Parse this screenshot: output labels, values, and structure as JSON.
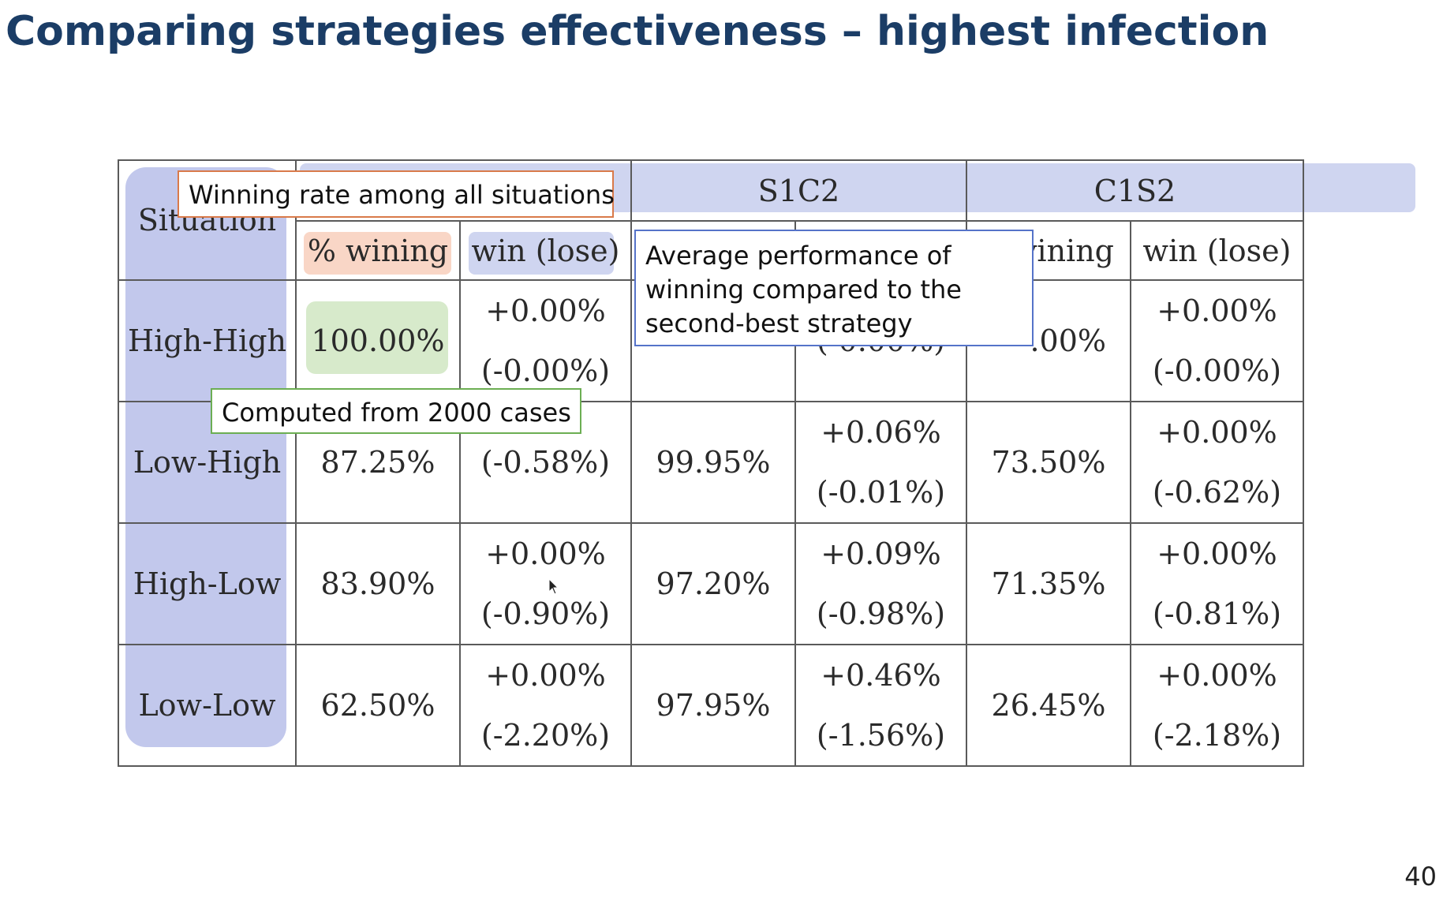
{
  "slide": {
    "title": "Comparing strategies effectiveness – highest infection",
    "page_number": "40"
  },
  "table": {
    "header": {
      "situation": "Situation",
      "s1c2": "S1C2",
      "c1s2": "C1S2"
    },
    "subheader": {
      "pct_winning": "% wining",
      "win_lose": "win (lose)",
      "c1s2_pct_partial": "vining",
      "c1s2_win_lose": "win (lose)"
    },
    "rows": [
      {
        "situation": "High-High",
        "w_rate": "100.00%",
        "w_gain": "+0.00%",
        "w_loss": "(-0.00%)",
        "s1_rate": "",
        "s1_gain": "",
        "s1_loss": "(-0.00%)",
        "c1_rate": ".00%",
        "c1_gain": "+0.00%",
        "c1_loss": "(-0.00%)"
      },
      {
        "situation": "Low-High",
        "w_rate": "87.25%",
        "w_gain": "",
        "w_loss": "(-0.58%)",
        "s1_rate": "99.95%",
        "s1_gain": "+0.06%",
        "s1_loss": "(-0.01%)",
        "c1_rate": "73.50%",
        "c1_gain": "+0.00%",
        "c1_loss": "(-0.62%)"
      },
      {
        "situation": "High-Low",
        "w_rate": "83.90%",
        "w_gain": "+0.00%",
        "w_loss": "(-0.90%)",
        "s1_rate": "97.20%",
        "s1_gain": "+0.09%",
        "s1_loss": "(-0.98%)",
        "c1_rate": "71.35%",
        "c1_gain": "+0.00%",
        "c1_loss": "(-0.81%)"
      },
      {
        "situation": "Low-Low",
        "w_rate": "62.50%",
        "w_gain": "+0.00%",
        "w_loss": "(-2.20%)",
        "s1_rate": "97.95%",
        "s1_gain": "+0.46%",
        "s1_loss": "(-1.56%)",
        "c1_rate": "26.45%",
        "c1_gain": "+0.00%",
        "c1_loss": "(-2.18%)"
      }
    ]
  },
  "annotations": {
    "winning_rate": "Winning rate among all situations",
    "average_performance": [
      "Average performance of",
      "winning compared to the",
      "second-best strategy"
    ],
    "computed": "Computed from 2000 cases"
  },
  "colors": {
    "title": "#1b3d66",
    "situation_highlight": "#c2c8ec",
    "header_highlight": "#cfd5f0",
    "pct_highlight": "#f9d6c6",
    "cell_highlight": "#d7eacb",
    "box_orange": "#d97a4a",
    "box_blue": "#5573c9",
    "box_green": "#6cae53"
  }
}
